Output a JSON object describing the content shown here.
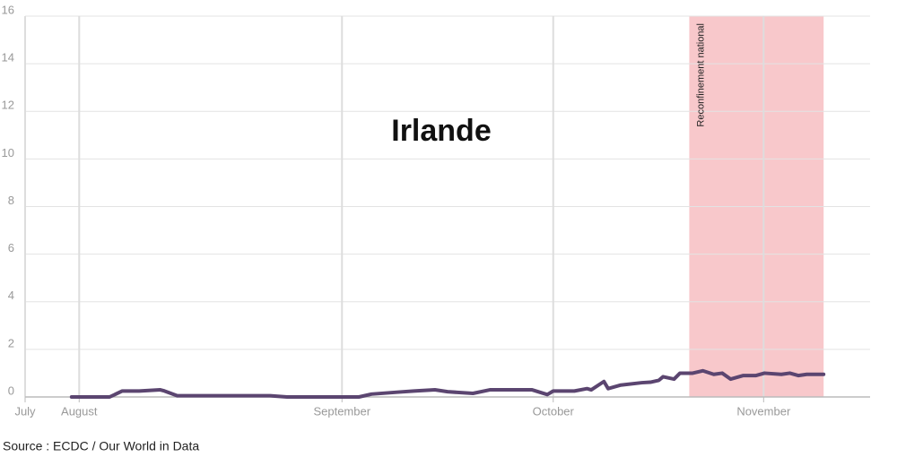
{
  "chart_data": {
    "type": "line",
    "title": "Irlande",
    "x": [
      5.5,
      10,
      11.5,
      13.5,
      16,
      16.5,
      18,
      22,
      29,
      31,
      39.5,
      41,
      44,
      46,
      48.5,
      50,
      53,
      55,
      60,
      61.8,
      62.5,
      65,
      66.5,
      67,
      68.5,
      69,
      70.5,
      73,
      74,
      75,
      75.5,
      76.8,
      77.5,
      79,
      80.2,
      81.5,
      82.5,
      83.5,
      85,
      86.5,
      87.5,
      89.5,
      90.5,
      91.5,
      92.5,
      94.5
    ],
    "series": [
      {
        "name": "Irlande",
        "color": "#5b4570",
        "values": [
          0,
          0,
          0.25,
          0.25,
          0.3,
          0.25,
          0.05,
          0.05,
          0.05,
          0,
          0,
          0.12,
          0.2,
          0.25,
          0.3,
          0.22,
          0.15,
          0.3,
          0.3,
          0.1,
          0.25,
          0.25,
          0.35,
          0.3,
          0.65,
          0.35,
          0.5,
          0.6,
          0.62,
          0.7,
          0.85,
          0.75,
          1.0,
          1.0,
          1.1,
          0.95,
          1.0,
          0.75,
          0.9,
          0.9,
          1.0,
          0.95,
          1.0,
          0.9,
          0.95,
          0.95
        ]
      }
    ],
    "xlim": [
      0,
      100
    ],
    "xticks": [
      {
        "value": 0,
        "label": "July"
      },
      {
        "value": 6.4,
        "label": "August"
      },
      {
        "value": 37.5,
        "label": "September"
      },
      {
        "value": 62.5,
        "label": "October"
      },
      {
        "value": 87.4,
        "label": "November"
      }
    ],
    "ylim": [
      0,
      16
    ],
    "yticks": [
      0,
      2,
      4,
      6,
      8,
      10,
      12,
      14,
      16
    ],
    "grid": true,
    "shaded_region": {
      "x": [
        78.6,
        94.5
      ],
      "label": "Reconfinement national",
      "color": "#f8c8cb"
    },
    "source": "Source : ECDC / Our World in Data"
  }
}
